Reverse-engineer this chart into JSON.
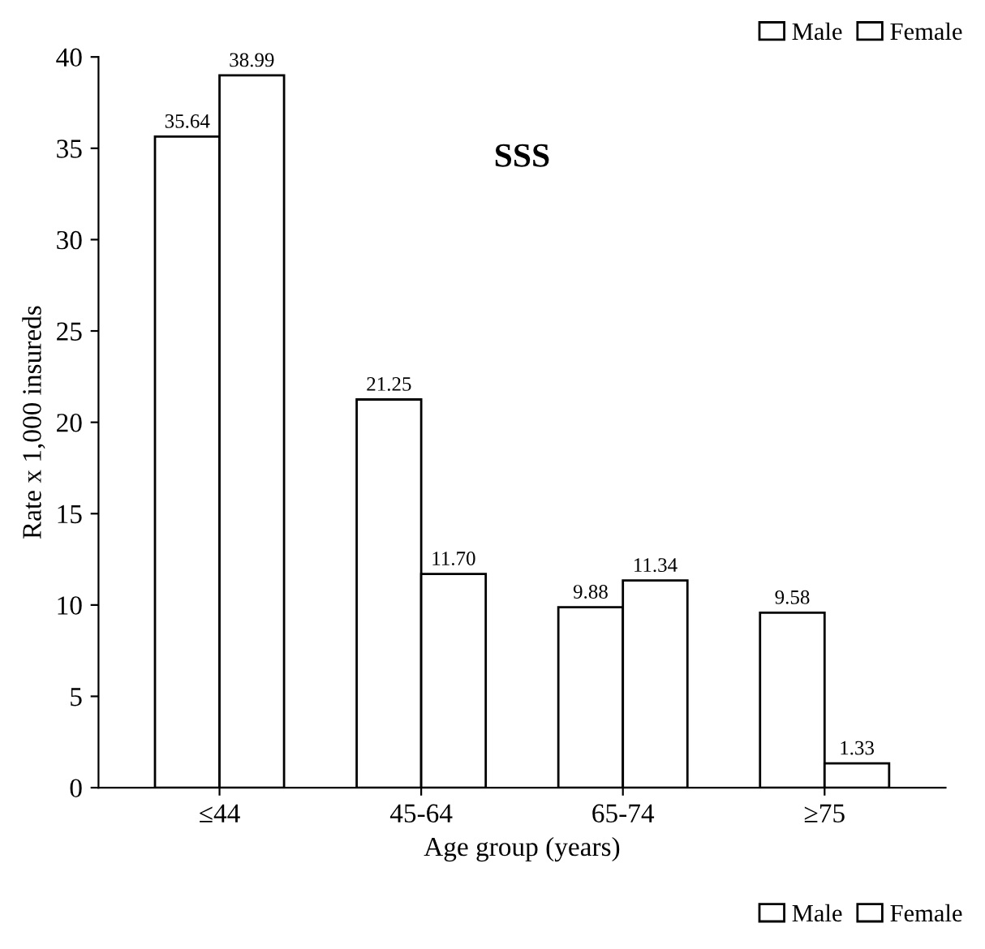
{
  "chart_data": {
    "type": "bar",
    "title": "SSS",
    "xlabel": "Age group (years)",
    "ylabel": "Rate x 1,000 insureds",
    "categories": [
      "≤44",
      "45-64",
      "65-74",
      "≥75"
    ],
    "series": [
      {
        "name": "Male",
        "color": "#ffffff",
        "values": [
          35.64,
          21.25,
          9.88,
          9.58
        ],
        "value_labels": [
          "35.64",
          "21.25",
          "9.88",
          "9.58"
        ]
      },
      {
        "name": "Female",
        "color": "#ffffff",
        "values": [
          38.99,
          11.7,
          11.34,
          1.33
        ],
        "value_labels": [
          "38.99",
          "11.70",
          "11.34",
          "1.33"
        ]
      }
    ],
    "ylim": [
      0,
      40
    ],
    "yticks": [
      0,
      5,
      10,
      15,
      20,
      25,
      30,
      35,
      40
    ],
    "grid": false,
    "legend": [
      "top right",
      "bottom right"
    ]
  }
}
